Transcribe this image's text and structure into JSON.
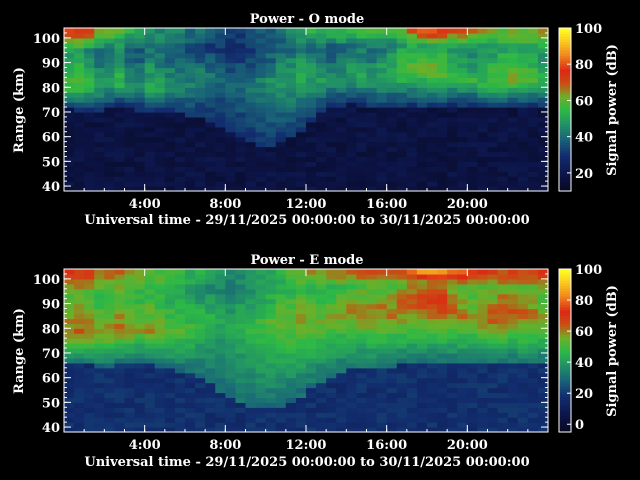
{
  "chart_data": [
    {
      "type": "heatmap",
      "title": "Power - O mode",
      "xlabel": "Universal time - 29/11/2025 00:00:00 to 30/11/2025 00:00:00",
      "ylabel": "Range (km)",
      "colorbar_label": "Signal power (dB)",
      "x_ticks": [
        "4:00",
        "8:00",
        "12:00",
        "16:00",
        "20:00"
      ],
      "x_tick_hours": [
        4,
        8,
        12,
        16,
        20
      ],
      "xlim_hours": [
        0,
        24
      ],
      "y_ticks": [
        40,
        50,
        60,
        70,
        80,
        90,
        100
      ],
      "ylim": [
        38,
        104
      ],
      "colorbar_ticks": [
        20,
        40,
        60,
        80,
        100
      ],
      "colorbar_range": [
        10,
        100
      ],
      "echo_bottom_km": [
        72,
        71,
        71,
        70,
        72,
        73,
        72,
        71,
        70,
        70,
        70,
        70,
        69,
        68,
        67,
        64,
        62,
        60,
        58,
        57,
        57,
        58,
        60,
        63,
        67,
        70,
        72,
        73,
        74,
        73,
        72,
        72,
        72,
        73,
        73,
        72,
        72,
        72,
        73,
        73,
        73,
        72,
        72,
        72,
        72,
        73,
        73,
        72
      ],
      "peak_range_km": [
        80,
        80,
        81,
        80,
        82,
        82,
        81,
        80,
        80,
        79,
        80,
        80,
        82,
        84,
        85,
        84,
        83,
        82,
        81,
        81,
        82,
        83,
        84,
        84,
        83,
        82,
        82,
        83,
        84,
        84,
        83,
        84,
        85,
        86,
        87,
        87,
        86,
        85,
        84,
        83,
        83,
        82,
        82,
        83,
        83,
        82,
        82,
        82
      ],
      "peak_power_db": [
        58,
        60,
        55,
        50,
        52,
        55,
        48,
        46,
        52,
        50,
        48,
        46,
        45,
        44,
        42,
        40,
        40,
        40,
        42,
        44,
        46,
        48,
        50,
        52,
        50,
        48,
        46,
        48,
        50,
        52,
        50,
        52,
        54,
        58,
        60,
        62,
        62,
        60,
        58,
        56,
        54,
        56,
        58,
        60,
        62,
        60,
        58,
        56
      ],
      "top_power_db": [
        78,
        80,
        76,
        70,
        65,
        60,
        55,
        50,
        48,
        46,
        45,
        44,
        42,
        40,
        38,
        36,
        35,
        34,
        36,
        38,
        40,
        42,
        45,
        50,
        55,
        56,
        55,
        56,
        58,
        60,
        62,
        60,
        58,
        65,
        72,
        82,
        85,
        82,
        78,
        74,
        70,
        66,
        62,
        60,
        62,
        64,
        66,
        68
      ]
    },
    {
      "type": "heatmap",
      "title": "Power - E mode",
      "xlabel": "Universal time - 29/11/2025 00:00:00 to 30/11/2025 00:00:00",
      "ylabel": "Range (km)",
      "colorbar_label": "Signal power (dB)",
      "x_ticks": [
        "4:00",
        "8:00",
        "12:00",
        "16:00",
        "20:00"
      ],
      "x_tick_hours": [
        4,
        8,
        12,
        16,
        20
      ],
      "xlim_hours": [
        0,
        24
      ],
      "y_ticks": [
        40,
        50,
        60,
        70,
        80,
        90,
        100
      ],
      "ylim": [
        38,
        104
      ],
      "colorbar_ticks": [
        0,
        20,
        40,
        60,
        80,
        100
      ],
      "colorbar_range": [
        -5,
        100
      ],
      "echo_bottom_km": [
        66,
        66,
        66,
        65,
        65,
        66,
        67,
        67,
        66,
        65,
        64,
        63,
        62,
        60,
        58,
        55,
        52,
        50,
        49,
        48,
        48,
        49,
        51,
        53,
        56,
        58,
        60,
        62,
        64,
        64,
        64,
        64,
        65,
        66,
        66,
        66,
        66,
        66,
        66,
        66,
        66,
        66,
        66,
        66,
        66,
        66,
        66,
        66
      ],
      "peak_range_km": [
        78,
        78,
        78,
        77,
        78,
        79,
        79,
        79,
        79,
        78,
        78,
        79,
        80,
        82,
        84,
        84,
        83,
        82,
        81,
        81,
        83,
        84,
        84,
        84,
        83,
        82,
        84,
        86,
        86,
        86,
        85,
        86,
        86,
        88,
        90,
        92,
        92,
        90,
        88,
        86,
        85,
        84,
        84,
        85,
        86,
        85,
        84,
        83
      ],
      "peak_power_db": [
        62,
        64,
        62,
        58,
        60,
        62,
        60,
        56,
        58,
        56,
        54,
        52,
        50,
        48,
        46,
        44,
        44,
        46,
        48,
        50,
        52,
        54,
        56,
        58,
        56,
        54,
        56,
        58,
        60,
        62,
        62,
        62,
        62,
        64,
        66,
        70,
        72,
        70,
        66,
        62,
        60,
        62,
        64,
        66,
        66,
        64,
        62,
        60
      ],
      "top_power_db": [
        70,
        72,
        70,
        66,
        64,
        62,
        58,
        56,
        54,
        52,
        50,
        48,
        46,
        44,
        42,
        40,
        38,
        38,
        40,
        42,
        45,
        48,
        52,
        56,
        60,
        62,
        62,
        64,
        66,
        68,
        70,
        68,
        66,
        72,
        80,
        88,
        92,
        90,
        86,
        82,
        76,
        72,
        68,
        66,
        68,
        70,
        72,
        74
      ]
    }
  ]
}
